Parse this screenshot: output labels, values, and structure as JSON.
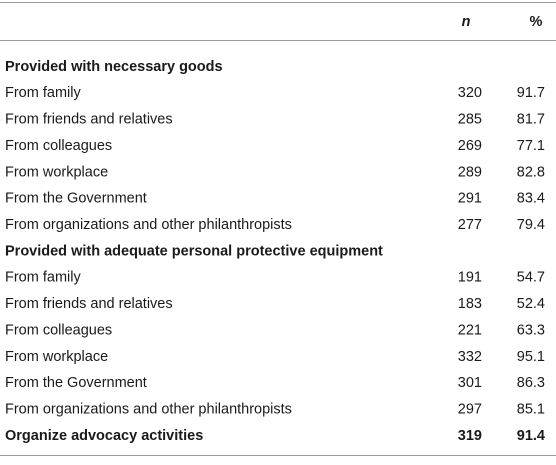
{
  "table": {
    "columns": [
      "n",
      "%"
    ],
    "rows": [
      {
        "label": "Provided with necessary goods",
        "heading": true
      },
      {
        "label": "From family",
        "n": 320,
        "pct": 91.7
      },
      {
        "label": "From friends and relatives",
        "n": 285,
        "pct": 81.7
      },
      {
        "label": "From colleagues",
        "n": 269,
        "pct": 77.1
      },
      {
        "label": "From workplace",
        "n": 289,
        "pct": 82.8
      },
      {
        "label": "From the Government",
        "n": 291,
        "pct": 83.4
      },
      {
        "label": "From organizations and other philanthropists",
        "n": 277,
        "pct": 79.4
      },
      {
        "label": "Provided with adequate personal protective equipment",
        "heading": true
      },
      {
        "label": "From family",
        "n": 191,
        "pct": 54.7
      },
      {
        "label": "From friends and relatives",
        "n": 183,
        "pct": 52.4
      },
      {
        "label": "From colleagues",
        "n": 221,
        "pct": 63.3
      },
      {
        "label": "From workplace",
        "n": 332,
        "pct": 95.1
      },
      {
        "label": "From the Government",
        "n": 301,
        "pct": 86.3
      },
      {
        "label": "From organizations and other philanthropists",
        "n": 297,
        "pct": 85.1
      },
      {
        "label": "Organize advocacy activities",
        "heading": true,
        "n": 319,
        "pct": 91.4
      }
    ]
  }
}
